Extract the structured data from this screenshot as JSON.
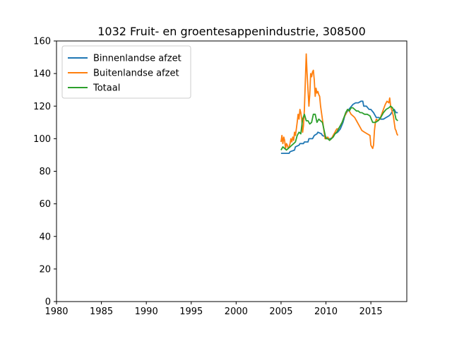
{
  "chart_data": {
    "type": "line",
    "title": "1032 Fruit- en groentesappenindustrie, 308500",
    "xlabel": "",
    "ylabel": "",
    "xlim": [
      1980,
      2019
    ],
    "ylim": [
      0,
      160
    ],
    "xticks": [
      1980,
      1985,
      1990,
      1995,
      2000,
      2005,
      2010,
      2015
    ],
    "yticks": [
      0,
      20,
      40,
      60,
      80,
      100,
      120,
      140,
      160
    ],
    "grid": false,
    "legend_position": "upper-left",
    "series": [
      {
        "name": "Binnenlandse afzet",
        "color": "#1f77b4",
        "x": [
          2005.0,
          2005.9,
          2006.0,
          2006.5,
          2006.6,
          2007.0,
          2007.1,
          2007.5,
          2007.6,
          2008.0,
          2008.1,
          2008.5,
          2008.7,
          2009.0,
          2009.1,
          2009.5,
          2009.6,
          2010.0,
          2010.2,
          2010.5,
          2010.8,
          2011.0,
          2011.3,
          2011.6,
          2011.9,
          2012.1,
          2012.4,
          2012.7,
          2013.0,
          2013.3,
          2013.6,
          2013.9,
          2014.1,
          2014.2,
          2014.5,
          2014.8,
          2015.0,
          2015.3,
          2015.6,
          2015.9,
          2016.1,
          2016.4,
          2016.7,
          2017.0,
          2017.2,
          2017.4,
          2017.6,
          2017.8,
          2018.0
        ],
        "y": [
          91,
          91,
          92,
          93,
          95,
          96,
          97,
          97,
          98,
          98,
          100,
          100,
          102,
          103,
          104,
          103,
          102,
          101,
          100,
          100,
          101,
          103,
          104,
          106,
          110,
          114,
          117,
          119,
          121,
          122,
          122,
          123,
          123,
          120,
          120,
          118,
          118,
          116,
          113,
          113,
          112,
          112,
          113,
          114,
          115,
          117,
          118,
          116,
          116
        ]
      },
      {
        "name": "Buitenlandse afzet",
        "color": "#ff7f0e",
        "x": [
          2005.0,
          2005.1,
          2005.2,
          2005.3,
          2005.4,
          2005.5,
          2005.6,
          2005.7,
          2005.8,
          2005.9,
          2006.0,
          2006.1,
          2006.2,
          2006.3,
          2006.4,
          2006.5,
          2006.6,
          2006.7,
          2006.8,
          2006.9,
          2007.0,
          2007.1,
          2007.2,
          2007.3,
          2007.4,
          2007.5,
          2007.6,
          2007.7,
          2007.8,
          2007.9,
          2008.0,
          2008.1,
          2008.2,
          2008.3,
          2008.4,
          2008.5,
          2008.6,
          2008.7,
          2008.8,
          2008.9,
          2009.0,
          2009.1,
          2009.2,
          2009.3,
          2009.4,
          2009.5,
          2009.6,
          2009.7,
          2009.8,
          2009.9,
          2010.0,
          2010.2,
          2010.4,
          2010.6,
          2010.8,
          2011.0,
          2011.2,
          2011.4,
          2011.6,
          2011.8,
          2012.0,
          2012.2,
          2012.4,
          2012.6,
          2012.8,
          2013.0,
          2013.2,
          2013.4,
          2013.6,
          2013.8,
          2014.0,
          2014.3,
          2014.6,
          2014.9,
          2015.0,
          2015.1,
          2015.2,
          2015.3,
          2015.4,
          2015.5,
          2015.6,
          2015.8,
          2016.0,
          2016.2,
          2016.4,
          2016.6,
          2016.8,
          2017.0,
          2017.1,
          2017.2,
          2017.3,
          2017.4,
          2017.5,
          2017.6,
          2017.7,
          2017.8,
          2017.9,
          2018.0
        ],
        "y": [
          98,
          102,
          97,
          101,
          99,
          94,
          97,
          96,
          94,
          95,
          97,
          100,
          98,
          101,
          99,
          104,
          102,
          106,
          110,
          115,
          112,
          118,
          116,
          112,
          104,
          108,
          118,
          135,
          152,
          140,
          130,
          120,
          127,
          140,
          138,
          141,
          142,
          136,
          126,
          131,
          128,
          129,
          127,
          126,
          120,
          116,
          112,
          108,
          104,
          100,
          100,
          101,
          99,
          100,
          102,
          104,
          106,
          106,
          108,
          110,
          113,
          115,
          118,
          117,
          115,
          114,
          113,
          111,
          109,
          107,
          105,
          104,
          103,
          102,
          96,
          95,
          94,
          96,
          105,
          110,
          112,
          111,
          112,
          115,
          118,
          121,
          123,
          122,
          125,
          120,
          118,
          116,
          114,
          110,
          106,
          105,
          103,
          102
        ]
      },
      {
        "name": "Totaal",
        "color": "#2ca02c",
        "x": [
          2005.0,
          2005.2,
          2005.4,
          2005.6,
          2005.8,
          2006.0,
          2006.2,
          2006.4,
          2006.6,
          2006.8,
          2007.0,
          2007.2,
          2007.4,
          2007.6,
          2007.8,
          2008.0,
          2008.2,
          2008.4,
          2008.6,
          2008.8,
          2009.0,
          2009.2,
          2009.4,
          2009.6,
          2009.8,
          2010.0,
          2010.2,
          2010.4,
          2010.6,
          2010.8,
          2011.0,
          2011.2,
          2011.4,
          2011.6,
          2011.8,
          2012.0,
          2012.2,
          2012.4,
          2012.6,
          2012.8,
          2013.0,
          2013.2,
          2013.4,
          2013.6,
          2013.8,
          2014.0,
          2014.3,
          2014.6,
          2014.9,
          2015.2,
          2015.5,
          2015.8,
          2016.1,
          2016.4,
          2016.7,
          2017.0,
          2017.2,
          2017.4,
          2017.6,
          2017.8,
          2018.0
        ],
        "y": [
          93,
          95,
          94,
          93,
          94,
          95,
          96,
          97,
          98,
          102,
          104,
          103,
          112,
          115,
          111,
          111,
          109,
          110,
          115,
          115,
          110,
          112,
          111,
          110,
          105,
          100,
          100,
          99,
          100,
          101,
          103,
          104,
          106,
          108,
          110,
          113,
          116,
          118,
          117,
          119,
          119,
          118,
          117,
          117,
          116,
          116,
          115,
          115,
          114,
          110,
          110,
          111,
          113,
          116,
          118,
          119,
          120,
          119,
          117,
          112,
          111
        ]
      }
    ]
  }
}
